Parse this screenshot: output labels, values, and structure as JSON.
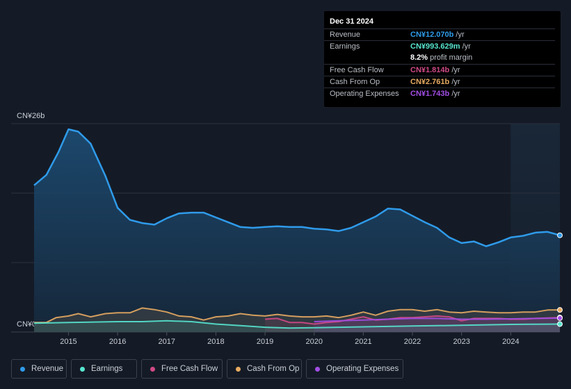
{
  "chart_data": {
    "type": "area",
    "y_top_label": "CN¥26b",
    "y_bottom_label": "CN¥0",
    "ylim": [
      0,
      26
    ],
    "xlim": [
      2014.3,
      2025.0
    ],
    "x_ticks": [
      2015,
      2016,
      2017,
      2018,
      2019,
      2020,
      2021,
      2022,
      2023,
      2024
    ],
    "x_tick_labels": [
      "2015",
      "2016",
      "2017",
      "2018",
      "2019",
      "2020",
      "2021",
      "2022",
      "2023",
      "2024"
    ],
    "forecast_shade_start": 2024.0,
    "series": [
      {
        "name": "Revenue",
        "color": "#2f9bea",
        "x": [
          2014.3,
          2014.55,
          2014.8,
          2015.0,
          2015.2,
          2015.45,
          2015.75,
          2016.0,
          2016.25,
          2016.5,
          2016.75,
          2017.0,
          2017.25,
          2017.5,
          2017.75,
          2018.0,
          2018.25,
          2018.5,
          2018.75,
          2019.0,
          2019.25,
          2019.5,
          2019.75,
          2020.0,
          2020.25,
          2020.5,
          2020.75,
          2021.0,
          2021.25,
          2021.5,
          2021.75,
          2022.0,
          2022.25,
          2022.5,
          2022.75,
          2023.0,
          2023.25,
          2023.5,
          2023.75,
          2024.0,
          2024.25,
          2024.5,
          2024.75,
          2025.0
        ],
        "values": [
          18.3,
          19.6,
          22.5,
          25.3,
          25.0,
          23.5,
          19.5,
          15.5,
          14.0,
          13.6,
          13.4,
          14.2,
          14.8,
          14.9,
          14.9,
          14.3,
          13.7,
          13.1,
          13.0,
          13.1,
          13.2,
          13.1,
          13.1,
          12.9,
          12.8,
          12.6,
          13.0,
          13.7,
          14.4,
          15.4,
          15.3,
          14.5,
          13.7,
          13.0,
          11.8,
          11.1,
          11.3,
          10.7,
          11.2,
          11.8,
          12.0,
          12.4,
          12.5,
          12.07
        ]
      },
      {
        "name": "Earnings",
        "color": "#57e6d0",
        "x": [
          2014.3,
          2015.0,
          2016.0,
          2016.5,
          2017.0,
          2017.5,
          2018.0,
          2018.5,
          2019.0,
          2019.5,
          2020.0,
          2020.5,
          2021.0,
          2021.5,
          2022.0,
          2022.5,
          2023.0,
          2023.5,
          2024.0,
          2024.5,
          2025.0
        ],
        "values": [
          1.1,
          1.2,
          1.3,
          1.3,
          1.4,
          1.3,
          1.0,
          0.8,
          0.6,
          0.5,
          0.55,
          0.6,
          0.65,
          0.7,
          0.75,
          0.8,
          0.85,
          0.9,
          0.95,
          0.98,
          0.994
        ]
      },
      {
        "name": "Free Cash Flow",
        "color": "#d14a87",
        "x": [
          2019.0,
          2019.25,
          2019.5,
          2019.75,
          2020.0,
          2020.25,
          2020.5,
          2020.75,
          2021.0,
          2021.25,
          2021.5,
          2021.75,
          2022.0,
          2022.25,
          2022.5,
          2022.75,
          2023.0,
          2023.25,
          2023.5,
          2023.75,
          2024.0,
          2024.25,
          2024.5,
          2024.75,
          2025.0
        ],
        "values": [
          1.6,
          1.7,
          1.2,
          1.2,
          1.0,
          1.2,
          1.3,
          1.6,
          1.9,
          1.5,
          1.6,
          1.8,
          1.8,
          1.9,
          2.0,
          1.9,
          1.4,
          1.7,
          1.7,
          1.7,
          1.6,
          1.6,
          1.7,
          1.75,
          1.814
        ]
      },
      {
        "name": "Cash From Op",
        "color": "#e8ab62",
        "x": [
          2014.3,
          2014.55,
          2014.75,
          2015.0,
          2015.2,
          2015.45,
          2015.75,
          2016.0,
          2016.25,
          2016.5,
          2016.75,
          2017.0,
          2017.25,
          2017.5,
          2017.75,
          2018.0,
          2018.25,
          2018.5,
          2018.75,
          2019.0,
          2019.25,
          2019.5,
          2019.75,
          2020.0,
          2020.25,
          2020.5,
          2020.75,
          2021.0,
          2021.25,
          2021.5,
          2021.75,
          2022.0,
          2022.25,
          2022.5,
          2022.75,
          2023.0,
          2023.25,
          2023.5,
          2023.75,
          2024.0,
          2024.25,
          2024.5,
          2024.75,
          2025.0
        ],
        "values": [
          1.2,
          1.2,
          1.8,
          2.0,
          2.3,
          1.9,
          2.3,
          2.4,
          2.4,
          3.0,
          2.8,
          2.5,
          2.0,
          1.9,
          1.5,
          1.9,
          2.0,
          2.3,
          2.1,
          2.0,
          2.2,
          2.0,
          1.9,
          1.9,
          2.0,
          1.8,
          2.1,
          2.5,
          2.1,
          2.6,
          2.8,
          2.8,
          2.6,
          2.8,
          2.5,
          2.4,
          2.6,
          2.5,
          2.4,
          2.4,
          2.5,
          2.5,
          2.75,
          2.761
        ]
      },
      {
        "name": "Operating Expenses",
        "color": "#a24ee5",
        "x": [
          2020.0,
          2020.5,
          2021.0,
          2021.5,
          2022.0,
          2022.5,
          2023.0,
          2023.5,
          2024.0,
          2024.5,
          2025.0
        ],
        "values": [
          1.3,
          1.4,
          1.5,
          1.6,
          1.7,
          1.7,
          1.6,
          1.6,
          1.65,
          1.7,
          1.743
        ]
      }
    ]
  },
  "tooltip": {
    "date": "Dec 31 2024",
    "rows": [
      {
        "label": "Revenue",
        "value": "CN¥12.070b",
        "unit": " /yr",
        "color": "#2f9bea"
      },
      {
        "label": "Earnings",
        "value": "CN¥993.629m",
        "unit": " /yr",
        "color": "#57e6d0"
      },
      {
        "label": "Free Cash Flow",
        "value": "CN¥1.814b",
        "unit": " /yr",
        "color": "#d14a87"
      },
      {
        "label": "Cash From Op",
        "value": "CN¥2.761b",
        "unit": " /yr",
        "color": "#e8ab62"
      },
      {
        "label": "Operating Expenses",
        "value": "CN¥1.743b",
        "unit": " /yr",
        "color": "#a24ee5"
      }
    ],
    "margin_value": "8.2%",
    "margin_label": " profit margin"
  },
  "legend": [
    {
      "label": "Revenue",
      "color": "#2f9bea"
    },
    {
      "label": "Earnings",
      "color": "#57e6d0"
    },
    {
      "label": "Free Cash Flow",
      "color": "#d14a87"
    },
    {
      "label": "Cash From Op",
      "color": "#e8ab62"
    },
    {
      "label": "Operating Expenses",
      "color": "#a24ee5"
    }
  ]
}
